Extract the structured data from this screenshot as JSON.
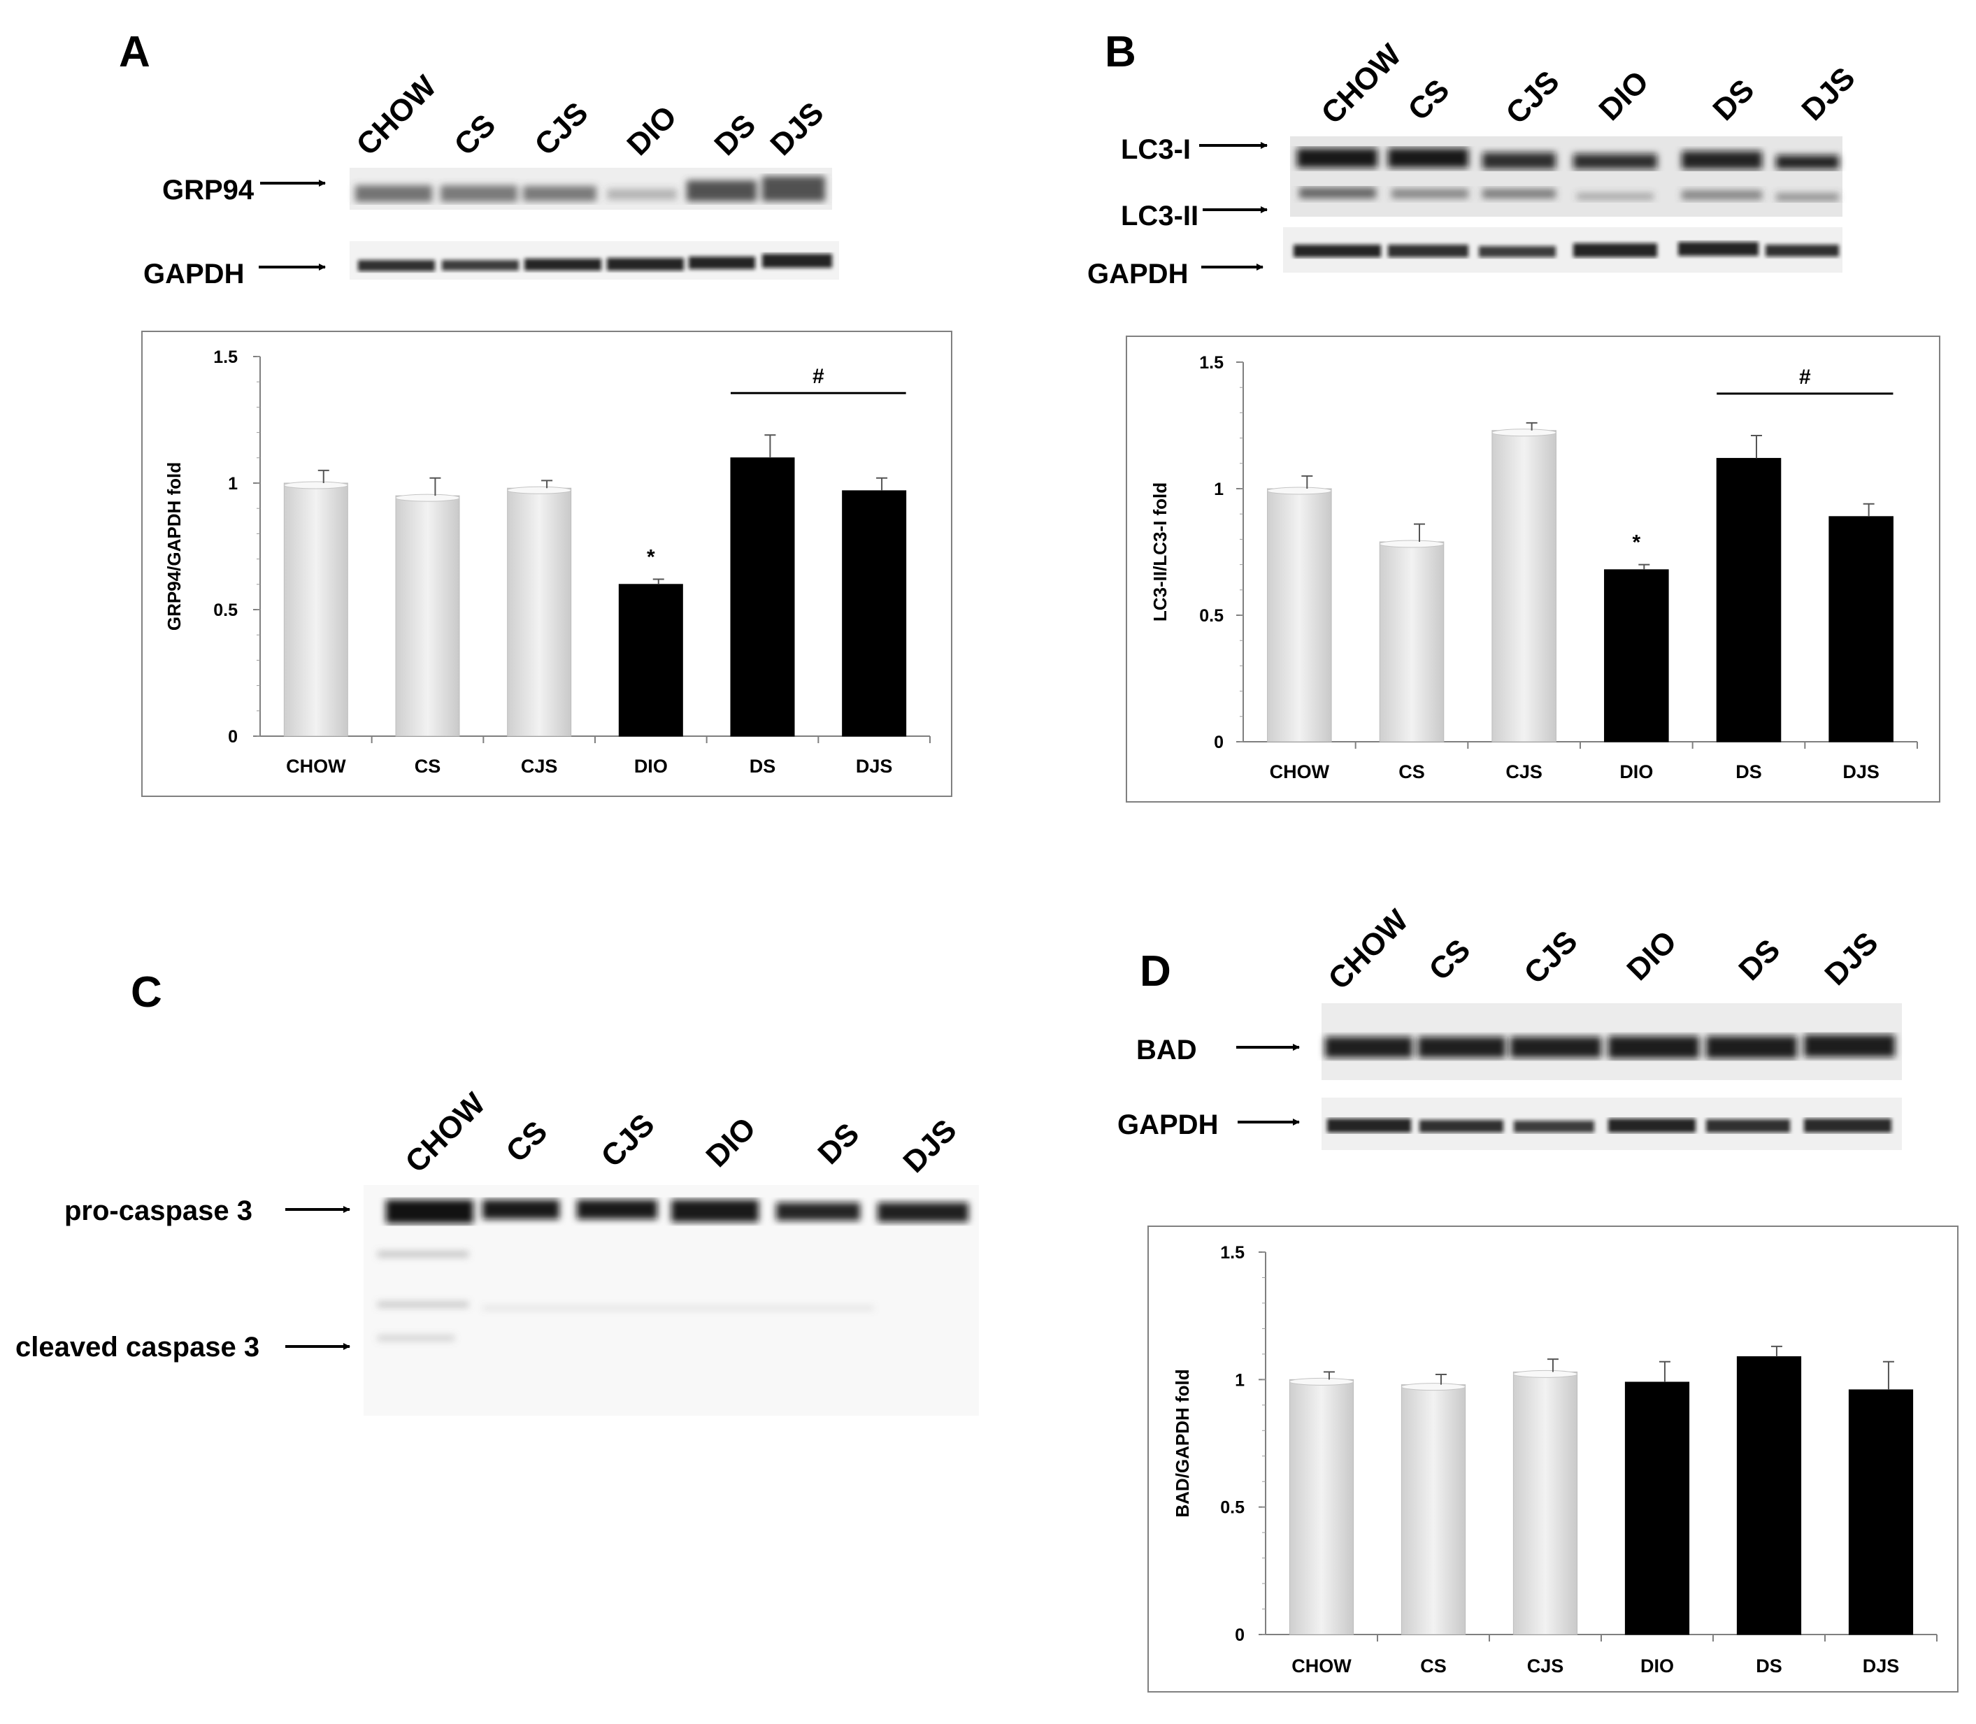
{
  "panels": {
    "A": {
      "letter": "A",
      "lanes": [
        "CHOW",
        "CS",
        "CJS",
        "DIO",
        "DS",
        "DJS"
      ],
      "blot_labels": [
        "GRP94",
        "GAPDH"
      ]
    },
    "B": {
      "letter": "B",
      "lanes": [
        "CHOW",
        "CS",
        "CJS",
        "DIO",
        "DS",
        "DJS"
      ],
      "blot_labels": [
        "LC3-I",
        "LC3-II",
        "GAPDH"
      ]
    },
    "C": {
      "letter": "C",
      "lanes": [
        "CHOW",
        "CS",
        "CJS",
        "DIO",
        "DS",
        "DJS"
      ],
      "blot_labels": [
        "pro-caspase 3",
        "cleaved caspase 3"
      ]
    },
    "D": {
      "letter": "D",
      "lanes": [
        "CHOW",
        "CS",
        "CJS",
        "DIO",
        "DS",
        "DJS"
      ],
      "blot_labels": [
        "BAD",
        "GAPDH"
      ]
    }
  },
  "colors": {
    "control_bar": "#e4e4e4",
    "diet_bar": "#000000",
    "frame": "#808080"
  },
  "chart_data": [
    {
      "panel": "A",
      "type": "bar",
      "categories": [
        "CHOW",
        "CS",
        "CJS",
        "DIO",
        "DS",
        "DJS"
      ],
      "values": [
        1.0,
        0.95,
        0.98,
        0.6,
        1.1,
        0.97
      ],
      "errors": [
        0.05,
        0.07,
        0.03,
        0.02,
        0.09,
        0.05
      ],
      "bar_group": [
        "control",
        "control",
        "control",
        "diet",
        "diet",
        "diet"
      ],
      "ylabel": "GRP94/GAPDH fold",
      "ylim": [
        0,
        1.5
      ],
      "yticks": [
        "0",
        "0.5",
        "1",
        "1.5"
      ],
      "annotations": [
        {
          "text": "*",
          "category": "DIO"
        },
        {
          "text": "#",
          "from": "DS",
          "to": "DJS"
        }
      ]
    },
    {
      "panel": "B",
      "type": "bar",
      "categories": [
        "CHOW",
        "CS",
        "CJS",
        "DIO",
        "DS",
        "DJS"
      ],
      "values": [
        1.0,
        0.79,
        1.23,
        0.68,
        1.12,
        0.89
      ],
      "errors": [
        0.05,
        0.07,
        0.03,
        0.02,
        0.09,
        0.05
      ],
      "bar_group": [
        "control",
        "control",
        "control",
        "diet",
        "diet",
        "diet"
      ],
      "ylabel": "LC3-II/LC3-I fold",
      "ylim": [
        0,
        1.5
      ],
      "yticks": [
        "0",
        "0.5",
        "1",
        "1.5"
      ],
      "annotations": [
        {
          "text": "*",
          "category": "DIO"
        },
        {
          "text": "#",
          "from": "DS",
          "to": "DJS"
        }
      ]
    },
    {
      "panel": "D",
      "type": "bar",
      "categories": [
        "CHOW",
        "CS",
        "CJS",
        "DIO",
        "DS",
        "DJS"
      ],
      "values": [
        1.0,
        0.98,
        1.03,
        0.99,
        1.09,
        0.96
      ],
      "errors": [
        0.03,
        0.04,
        0.05,
        0.08,
        0.04,
        0.11
      ],
      "bar_group": [
        "control",
        "control",
        "control",
        "diet",
        "diet",
        "diet"
      ],
      "ylabel": "BAD/GAPDH fold",
      "ylim": [
        0,
        1.5
      ],
      "yticks": [
        "0",
        "0.5",
        "1",
        "1.5"
      ],
      "annotations": []
    }
  ]
}
